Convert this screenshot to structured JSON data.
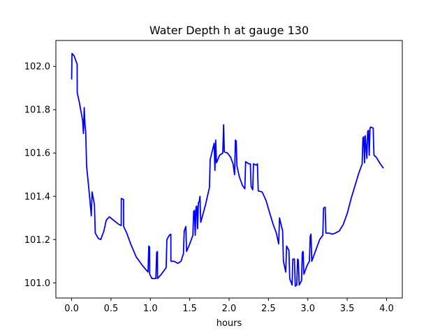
{
  "chart_data": {
    "type": "line",
    "title": "Water Depth h at gauge 130",
    "xlabel": "hours",
    "ylabel": "",
    "xlim": [
      -0.2,
      4.2
    ],
    "ylim": [
      100.93,
      102.12
    ],
    "grid": false,
    "legend": "none",
    "x_ticks": [
      0.0,
      0.5,
      1.0,
      1.5,
      2.0,
      2.5,
      3.0,
      3.5,
      4.0
    ],
    "x_tick_labels": [
      "0.0",
      "0.5",
      "1.0",
      "1.5",
      "2.0",
      "2.5",
      "3.0",
      "3.5",
      "4.0"
    ],
    "y_ticks": [
      101.0,
      101.2,
      101.4,
      101.6,
      101.8,
      102.0
    ],
    "y_tick_labels": [
      "101.0",
      "101.2",
      "101.4",
      "101.6",
      "101.8",
      "102.0"
    ],
    "series": [
      {
        "name": "",
        "color": "#0000ff",
        "points": [
          [
            0.0,
            101.94
          ],
          [
            0.005,
            102.06
          ],
          [
            0.03,
            102.05
          ],
          [
            0.07,
            102.01
          ],
          [
            0.071,
            101.88
          ],
          [
            0.1,
            101.83
          ],
          [
            0.14,
            101.75
          ],
          [
            0.15,
            101.69
          ],
          [
            0.16,
            101.81
          ],
          [
            0.17,
            101.73
          ],
          [
            0.18,
            101.69
          ],
          [
            0.19,
            101.54
          ],
          [
            0.22,
            101.43
          ],
          [
            0.25,
            101.31
          ],
          [
            0.26,
            101.42
          ],
          [
            0.29,
            101.36
          ],
          [
            0.3,
            101.23
          ],
          [
            0.34,
            101.205
          ],
          [
            0.37,
            101.2
          ],
          [
            0.41,
            101.24
          ],
          [
            0.44,
            101.29
          ],
          [
            0.48,
            101.305
          ],
          [
            0.53,
            101.29
          ],
          [
            0.6,
            101.27
          ],
          [
            0.63,
            101.265
          ],
          [
            0.631,
            101.39
          ],
          [
            0.66,
            101.385
          ],
          [
            0.661,
            101.26
          ],
          [
            0.7,
            101.23
          ],
          [
            0.75,
            101.18
          ],
          [
            0.82,
            101.12
          ],
          [
            0.9,
            101.08
          ],
          [
            0.97,
            101.05
          ],
          [
            0.98,
            101.17
          ],
          [
            0.99,
            101.165
          ],
          [
            0.991,
            101.04
          ],
          [
            1.02,
            101.02
          ],
          [
            1.07,
            101.02
          ],
          [
            1.08,
            101.14
          ],
          [
            1.09,
            101.145
          ],
          [
            1.091,
            101.02
          ],
          [
            1.14,
            101.04
          ],
          [
            1.2,
            101.07
          ],
          [
            1.21,
            101.2
          ],
          [
            1.24,
            101.22
          ],
          [
            1.26,
            101.225
          ],
          [
            1.261,
            101.1
          ],
          [
            1.3,
            101.1
          ],
          [
            1.35,
            101.09
          ],
          [
            1.39,
            101.1
          ],
          [
            1.42,
            101.135
          ],
          [
            1.43,
            101.24
          ],
          [
            1.44,
            101.25
          ],
          [
            1.45,
            101.26
          ],
          [
            1.46,
            101.145
          ],
          [
            1.5,
            101.18
          ],
          [
            1.54,
            101.22
          ],
          [
            1.55,
            101.33
          ],
          [
            1.56,
            101.335
          ],
          [
            1.57,
            101.22
          ],
          [
            1.58,
            101.35
          ],
          [
            1.59,
            101.355
          ],
          [
            1.6,
            101.25
          ],
          [
            1.61,
            101.37
          ],
          [
            1.62,
            101.375
          ],
          [
            1.63,
            101.4
          ],
          [
            1.64,
            101.28
          ],
          [
            1.7,
            101.36
          ],
          [
            1.75,
            101.44
          ],
          [
            1.76,
            101.57
          ],
          [
            1.8,
            101.63
          ],
          [
            1.81,
            101.645
          ],
          [
            1.82,
            101.52
          ],
          [
            1.83,
            101.66
          ],
          [
            1.84,
            101.555
          ],
          [
            1.88,
            101.59
          ],
          [
            1.92,
            101.6
          ],
          [
            1.93,
            101.73
          ],
          [
            1.94,
            101.605
          ],
          [
            1.98,
            101.6
          ],
          [
            2.02,
            101.58
          ],
          [
            2.05,
            101.55
          ],
          [
            2.07,
            101.5
          ],
          [
            2.08,
            101.66
          ],
          [
            2.09,
            101.655
          ],
          [
            2.1,
            101.54
          ],
          [
            2.13,
            101.49
          ],
          [
            2.17,
            101.45
          ],
          [
            2.2,
            101.435
          ],
          [
            2.21,
            101.56
          ],
          [
            2.25,
            101.55
          ],
          [
            2.27,
            101.55
          ],
          [
            2.28,
            101.445
          ],
          [
            2.3,
            101.43
          ],
          [
            2.31,
            101.55
          ],
          [
            2.34,
            101.545
          ],
          [
            2.35,
            101.545
          ],
          [
            2.36,
            101.55
          ],
          [
            2.37,
            101.425
          ],
          [
            2.42,
            101.42
          ],
          [
            2.47,
            101.38
          ],
          [
            2.51,
            101.33
          ],
          [
            2.56,
            101.27
          ],
          [
            2.6,
            101.23
          ],
          [
            2.63,
            101.18
          ],
          [
            2.64,
            101.3
          ],
          [
            2.66,
            101.27
          ],
          [
            2.68,
            101.24
          ],
          [
            2.69,
            101.1
          ],
          [
            2.72,
            101.05
          ],
          [
            2.73,
            101.17
          ],
          [
            2.76,
            101.15
          ],
          [
            2.77,
            101.02
          ],
          [
            2.79,
            101.0
          ],
          [
            2.8,
            100.99
          ],
          [
            2.81,
            101.11
          ],
          [
            2.83,
            101.11
          ],
          [
            2.84,
            100.985
          ],
          [
            2.86,
            100.99
          ],
          [
            2.87,
            101.11
          ],
          [
            2.88,
            101.105
          ],
          [
            2.89,
            100.99
          ],
          [
            2.92,
            101.01
          ],
          [
            2.93,
            101.14
          ],
          [
            2.94,
            101.145
          ],
          [
            2.95,
            101.04
          ],
          [
            2.99,
            101.08
          ],
          [
            3.02,
            101.1
          ],
          [
            3.03,
            101.215
          ],
          [
            3.04,
            101.225
          ],
          [
            3.05,
            101.1
          ],
          [
            3.1,
            101.15
          ],
          [
            3.15,
            101.2
          ],
          [
            3.19,
            101.22
          ],
          [
            3.2,
            101.345
          ],
          [
            3.22,
            101.35
          ],
          [
            3.23,
            101.23
          ],
          [
            3.27,
            101.23
          ],
          [
            3.31,
            101.225
          ],
          [
            3.35,
            101.23
          ],
          [
            3.4,
            101.24
          ],
          [
            3.45,
            101.27
          ],
          [
            3.5,
            101.32
          ],
          [
            3.55,
            101.39
          ],
          [
            3.6,
            101.45
          ],
          [
            3.65,
            101.51
          ],
          [
            3.69,
            101.55
          ],
          [
            3.7,
            101.67
          ],
          [
            3.71,
            101.675
          ],
          [
            3.72,
            101.555
          ],
          [
            3.73,
            101.68
          ],
          [
            3.75,
            101.575
          ],
          [
            3.76,
            101.7
          ],
          [
            3.77,
            101.705
          ],
          [
            3.78,
            101.59
          ],
          [
            3.79,
            101.715
          ],
          [
            3.8,
            101.72
          ],
          [
            3.83,
            101.715
          ],
          [
            3.84,
            101.59
          ],
          [
            3.87,
            101.58
          ],
          [
            3.92,
            101.55
          ],
          [
            3.96,
            101.53
          ]
        ]
      }
    ]
  }
}
